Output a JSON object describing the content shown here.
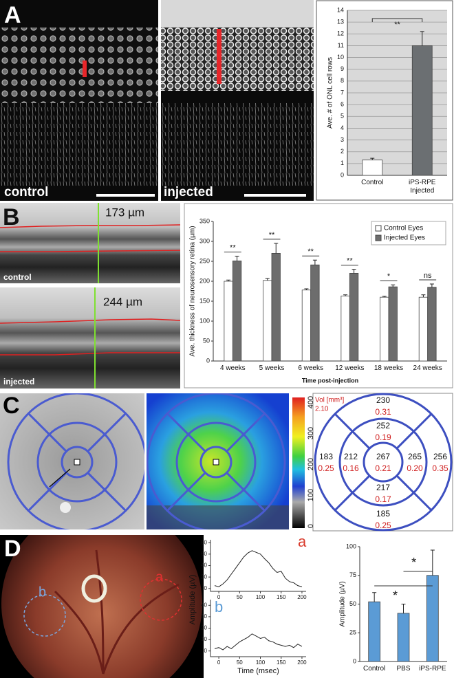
{
  "panels": {
    "A": {
      "letter": "A",
      "left_label": "control",
      "right_label": "injected"
    },
    "B": {
      "letter": "B",
      "top_label": "control",
      "top_measure": "173 µm",
      "bottom_label": "injected",
      "bottom_measure": "244 µm"
    },
    "C": {
      "letter": "C",
      "colorbar_ticks": [
        "400",
        "300",
        "200",
        "100",
        "0"
      ],
      "volume_label": "Vol [mm³]",
      "volume_total": "2.10",
      "sectors": [
        {
          "thickness": "230",
          "volume": "0.31"
        },
        {
          "thickness": "252",
          "volume": "0.19"
        },
        {
          "thickness": "183",
          "volume": "0.25"
        },
        {
          "thickness": "212",
          "volume": "0.16"
        },
        {
          "thickness": "267",
          "volume": "0.21"
        },
        {
          "thickness": "265",
          "volume": "0.20"
        },
        {
          "thickness": "256",
          "volume": "0.35"
        },
        {
          "thickness": "217",
          "volume": "0.17"
        },
        {
          "thickness": "185",
          "volume": "0.25"
        }
      ]
    },
    "D": {
      "letter": "D",
      "circle_a": "a",
      "circle_b": "b"
    }
  },
  "chart_data": [
    {
      "type": "bar",
      "ylabel": "Ave. # of ONL cell rows",
      "categories": [
        "Control",
        "iPS-RPE Injected"
      ],
      "values": [
        1.3,
        11
      ],
      "errors": [
        0.15,
        1.2
      ],
      "colors": [
        "#ffffff",
        "#6b6f72"
      ],
      "ylim": [
        0,
        14
      ],
      "yticks": [
        0,
        1,
        2,
        3,
        4,
        5,
        6,
        7,
        8,
        9,
        10,
        11,
        12,
        13,
        14
      ],
      "grid": true,
      "plot_background": "#d9d9d9",
      "annotations": [
        "**"
      ]
    },
    {
      "type": "bar",
      "ylabel": "Ave. thickness of neurosensory retina (µm)",
      "xlabel": "Time post-injection",
      "categories": [
        "4 weeks",
        "5 weeks",
        "6 weeks",
        "12 weeks",
        "18 weeks",
        "24 weeks"
      ],
      "series": [
        {
          "name": "Control Eyes",
          "color": "#ffffff",
          "values": [
            200,
            202,
            178,
            163,
            160,
            160
          ],
          "errors": [
            3,
            5,
            3,
            3,
            2,
            6
          ]
        },
        {
          "name": "Injected Eyes",
          "color": "#6d6d6d",
          "values": [
            251,
            270,
            241,
            220,
            186,
            185
          ],
          "errors": [
            12,
            25,
            12,
            10,
            5,
            8
          ]
        }
      ],
      "ylim": [
        0,
        350
      ],
      "yticks": [
        0,
        50,
        100,
        150,
        200,
        250,
        300,
        350
      ],
      "grid": false,
      "legend": "top-right",
      "annotations": [
        "**",
        "**",
        "**",
        "**",
        "*",
        "ns"
      ]
    },
    {
      "type": "line",
      "title": "a",
      "ylabel": "Amplitude (µV)",
      "color": "#222222",
      "title_color": "#d93a2b",
      "x": [
        -10,
        0,
        10,
        20,
        30,
        40,
        50,
        60,
        70,
        80,
        90,
        100,
        110,
        120,
        130,
        140,
        150,
        160,
        170,
        180,
        190,
        200
      ],
      "values": [
        5,
        3,
        8,
        15,
        25,
        35,
        45,
        55,
        62,
        66,
        63,
        60,
        52,
        45,
        35,
        28,
        30,
        18,
        12,
        10,
        5,
        3
      ],
      "xlim": [
        -20,
        210
      ],
      "xticks": [
        0,
        50,
        100,
        150,
        200
      ],
      "ylim": [
        -5,
        85
      ],
      "yticks": [
        0,
        20,
        40,
        60,
        80
      ]
    },
    {
      "type": "line",
      "title": "b",
      "xlabel": "Time (msec)",
      "color": "#222222",
      "title_color": "#5b9bd5",
      "x": [
        -10,
        0,
        10,
        20,
        30,
        40,
        50,
        60,
        70,
        80,
        90,
        100,
        110,
        120,
        130,
        140,
        150,
        160,
        170,
        180,
        190,
        200
      ],
      "values": [
        2,
        3,
        1,
        4,
        2,
        5,
        8,
        10,
        12,
        15,
        13,
        11,
        12,
        9,
        8,
        6,
        5,
        4,
        5,
        3,
        6,
        4
      ],
      "xlim": [
        -20,
        210
      ],
      "xticks": [
        0,
        50,
        100,
        150,
        200
      ],
      "ylim": [
        -5,
        45
      ],
      "yticks": [
        0,
        10,
        20,
        30,
        40
      ]
    },
    {
      "type": "bar",
      "ylabel": "Amplitude (µV)",
      "categories": [
        "Control",
        "PBS",
        "iPS-RPE"
      ],
      "values": [
        52,
        42,
        75
      ],
      "errors": [
        8,
        8,
        22
      ],
      "colors": [
        "#5b9bd5",
        "#5b9bd5",
        "#5b9bd5"
      ],
      "ylim": [
        0,
        100
      ],
      "yticks": [
        0,
        25,
        50,
        75,
        100
      ],
      "grid": false,
      "annotations": [
        "*",
        "*"
      ]
    }
  ]
}
